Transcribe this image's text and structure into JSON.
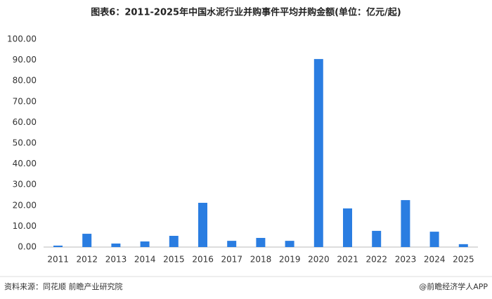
{
  "chart_data": {
    "type": "bar",
    "title": "图表6：2011-2025年中国水泥行业并购事件平均并购金额(单位：亿元/起)",
    "categories": [
      "2011",
      "2012",
      "2013",
      "2014",
      "2015",
      "2016",
      "2017",
      "2018",
      "2019",
      "2020",
      "2021",
      "2022",
      "2023",
      "2024",
      "2025"
    ],
    "values": [
      0.7,
      6.4,
      1.7,
      2.7,
      5.4,
      21.3,
      3.0,
      4.4,
      3.0,
      90.5,
      18.6,
      7.8,
      22.6,
      7.4,
      1.4
    ],
    "color": "#2a7de1",
    "ylim": [
      0,
      100
    ],
    "yticks": [
      {
        "value": 0,
        "label": "0.00"
      },
      {
        "value": 10,
        "label": "10.00"
      },
      {
        "value": 20,
        "label": "20.00"
      },
      {
        "value": 30,
        "label": "30.00"
      },
      {
        "value": 40,
        "label": "40.00"
      },
      {
        "value": 50,
        "label": "50.00"
      },
      {
        "value": 60,
        "label": "60.00"
      },
      {
        "value": 70,
        "label": "70.00"
      },
      {
        "value": 80,
        "label": "80.00"
      },
      {
        "value": 90,
        "label": "90.00"
      },
      {
        "value": 100,
        "label": "100.00"
      }
    ],
    "grid": false,
    "source": "资料来源：同花顺 前瞻产业研究院",
    "credit": "@前瞻经济学人APP"
  }
}
